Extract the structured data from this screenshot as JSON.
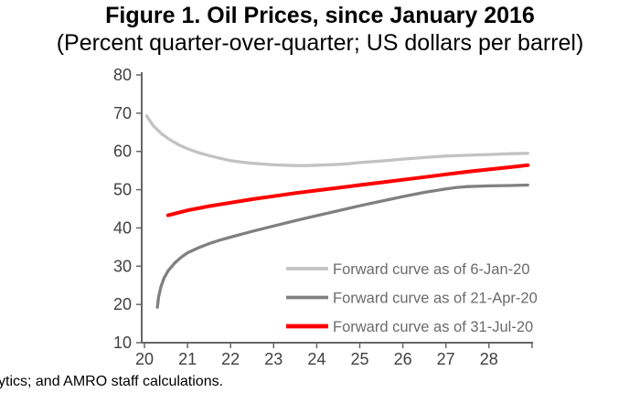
{
  "figure": {
    "title": "Figure 1. Oil Prices, since January 2016",
    "subtitle": "(Percent quarter-over-quarter; US dollars per barrel)",
    "source_note": "ytics; and AMRO staff calculations."
  },
  "chart_data": {
    "type": "line",
    "title": "Figure 1. Oil Prices, since January 2016",
    "subtitle": "(Percent quarter-over-quarter; US dollars per barrel)",
    "xlabel": "",
    "ylabel": "",
    "grid": false,
    "x_axis": {
      "range": [
        19.9,
        29.0
      ],
      "ticks": [
        {
          "value": 20,
          "label": "20"
        },
        {
          "value": 21,
          "label": "21"
        },
        {
          "value": 22,
          "label": "22"
        },
        {
          "value": 23,
          "label": "23"
        },
        {
          "value": 24,
          "label": "24"
        },
        {
          "value": 25,
          "label": "25"
        },
        {
          "value": 26,
          "label": "26"
        },
        {
          "value": 27,
          "label": "27"
        },
        {
          "value": 28,
          "label": "28"
        },
        {
          "value": 29,
          "label": ""
        }
      ]
    },
    "y_axis": {
      "range": [
        10,
        80
      ],
      "ticks": [
        10,
        20,
        30,
        40,
        50,
        60,
        70,
        80
      ]
    },
    "legend": {
      "position": "inside-lower-right"
    },
    "style": {
      "background": "#ffffff",
      "axis_color": "#666666",
      "tick_label_color": "#404040",
      "legend_text_color": "#6b6b6b"
    },
    "series": [
      {
        "name": "Forward curve as of 6-Jan-20",
        "slug": "6-jan-20",
        "color": "#c2c2c2",
        "stroke_width": 3.3,
        "legend_swatch_width": 3.7,
        "points": [
          [
            20.05,
            69.3
          ],
          [
            20.2,
            66.8
          ],
          [
            20.4,
            64.6
          ],
          [
            20.6,
            63.0
          ],
          [
            20.8,
            61.7
          ],
          [
            21.0,
            60.7
          ],
          [
            21.25,
            59.7
          ],
          [
            21.5,
            58.9
          ],
          [
            21.75,
            58.2
          ],
          [
            22.0,
            57.6
          ],
          [
            22.25,
            57.2
          ],
          [
            22.5,
            56.9
          ],
          [
            22.75,
            56.7
          ],
          [
            23.0,
            56.5
          ],
          [
            23.25,
            56.4
          ],
          [
            23.5,
            56.3
          ],
          [
            23.75,
            56.3
          ],
          [
            24.0,
            56.4
          ],
          [
            24.25,
            56.5
          ],
          [
            24.5,
            56.6
          ],
          [
            24.75,
            56.8
          ],
          [
            25.0,
            57.1
          ],
          [
            25.5,
            57.5
          ],
          [
            26.0,
            58.0
          ],
          [
            26.5,
            58.4
          ],
          [
            27.0,
            58.8
          ],
          [
            27.5,
            59.0
          ],
          [
            28.0,
            59.2
          ],
          [
            28.5,
            59.4
          ],
          [
            28.9,
            59.5
          ]
        ]
      },
      {
        "name": "Forward curve as of 21-Apr-20",
        "slug": "21-apr-20",
        "color": "#808080",
        "stroke_width": 3.3,
        "legend_swatch_width": 3.7,
        "points": [
          [
            20.3,
            19.3
          ],
          [
            20.33,
            22.0
          ],
          [
            20.38,
            24.5
          ],
          [
            20.45,
            26.8
          ],
          [
            20.55,
            28.8
          ],
          [
            20.7,
            30.8
          ],
          [
            20.85,
            32.3
          ],
          [
            21.0,
            33.5
          ],
          [
            21.25,
            34.8
          ],
          [
            21.5,
            35.9
          ],
          [
            21.75,
            36.8
          ],
          [
            22.0,
            37.6
          ],
          [
            22.5,
            39.1
          ],
          [
            23.0,
            40.5
          ],
          [
            23.5,
            41.9
          ],
          [
            24.0,
            43.2
          ],
          [
            24.5,
            44.5
          ],
          [
            25.0,
            45.8
          ],
          [
            25.5,
            47.0
          ],
          [
            26.0,
            48.2
          ],
          [
            26.5,
            49.3
          ],
          [
            27.0,
            50.2
          ],
          [
            27.25,
            50.6
          ],
          [
            27.5,
            50.8
          ],
          [
            28.0,
            51.0
          ],
          [
            28.5,
            51.1
          ],
          [
            28.9,
            51.2
          ]
        ]
      },
      {
        "name": "Forward curve as of 31-Jul-20",
        "slug": "31-jul-20",
        "color": "#ff0000",
        "stroke_width": 4,
        "legend_swatch_width": 4.7,
        "points": [
          [
            20.55,
            43.3
          ],
          [
            21.0,
            44.6
          ],
          [
            21.5,
            45.7
          ],
          [
            22.0,
            46.6
          ],
          [
            22.5,
            47.5
          ],
          [
            23.0,
            48.3
          ],
          [
            23.5,
            49.1
          ],
          [
            24.0,
            49.8
          ],
          [
            24.5,
            50.5
          ],
          [
            25.0,
            51.2
          ],
          [
            25.5,
            51.9
          ],
          [
            26.0,
            52.6
          ],
          [
            26.5,
            53.3
          ],
          [
            27.0,
            54.0
          ],
          [
            27.5,
            54.7
          ],
          [
            28.0,
            55.3
          ],
          [
            28.5,
            55.9
          ],
          [
            28.9,
            56.4
          ]
        ]
      }
    ]
  }
}
